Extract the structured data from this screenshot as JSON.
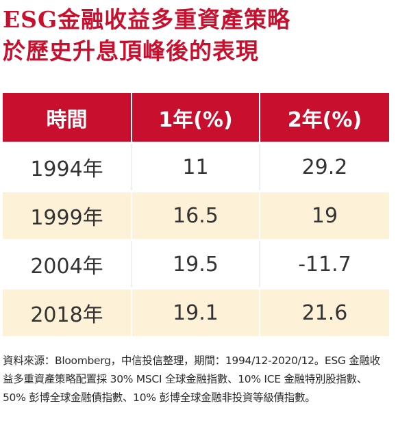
{
  "title": {
    "line1": "ESG金融收益多重資產策略",
    "line2": "於歷史升息頂峰後的表現"
  },
  "table": {
    "headers": [
      "時間",
      "1年(%)",
      "2年(%)"
    ],
    "rows": [
      [
        "1994年",
        "11",
        "29.2"
      ],
      [
        "1999年",
        "16.5",
        "19"
      ],
      [
        "2004年",
        "19.5",
        "-11.7"
      ],
      [
        "2018年",
        "19.1",
        "21.6"
      ]
    ]
  },
  "note": {
    "line1": "資料來源：Bloomberg，中信投信整理，期間：1994/12-2020/12。ESG 金融收",
    "line2": "益多重資產策略配置採 30% MSCI 全球金融指數、10% ICE 金融特別股指數、",
    "line3": "50% 彭博全球金融債指數、10% 彭博全球金融非投資等級債指數。"
  },
  "colors": {
    "accent": "#c8102e",
    "row_alt": "#fdf1d8"
  }
}
